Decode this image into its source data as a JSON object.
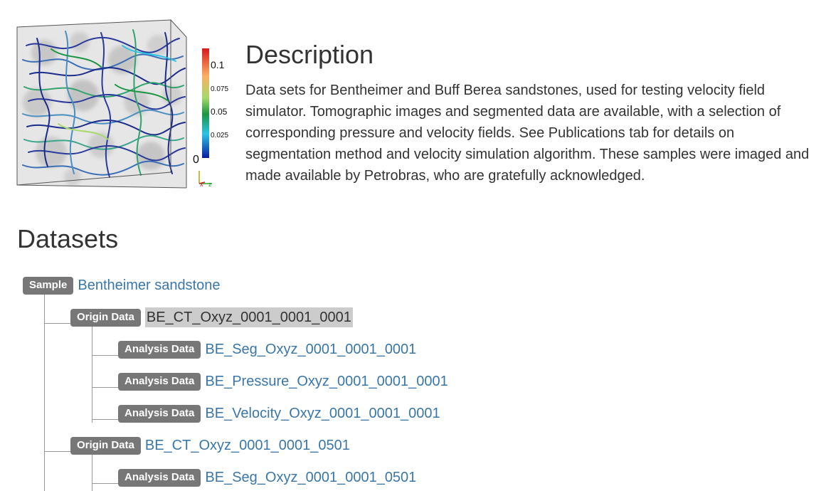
{
  "figure": {
    "colorbar_ticks": [
      "0.1",
      "0.075",
      "0.05",
      "0.025",
      "0"
    ],
    "axis_labels": [
      "x",
      "z"
    ]
  },
  "description": {
    "title": "Description",
    "text": "Data sets for Bentheimer and Buff Berea sandstones, used for testing velocity field simulator. Tomographic images and segmented data are available, with a selection of corresponding pressure and velocity fields. See Publications tab for details on segmentation method and velocity simulation algorithm. These samples were imaged and made available by Petrobras, who are gratefully acknowledged."
  },
  "datasets": {
    "title": "Datasets",
    "tree": [
      {
        "badge": "Sample",
        "label": "Bentheimer sandstone",
        "selected": false
      },
      {
        "badge": "Origin Data",
        "label": "BE_CT_Oxyz_0001_0001_0001",
        "selected": true
      },
      {
        "badge": "Analysis Data",
        "label": "BE_Seg_Oxyz_0001_0001_0001",
        "selected": false
      },
      {
        "badge": "Analysis Data",
        "label": "BE_Pressure_Oxyz_0001_0001_0001",
        "selected": false
      },
      {
        "badge": "Analysis Data",
        "label": "BE_Velocity_Oxyz_0001_0001_0001",
        "selected": false
      },
      {
        "badge": "Origin Data",
        "label": "BE_CT_Oxyz_0001_0001_0501",
        "selected": false
      },
      {
        "badge": "Analysis Data",
        "label": "BE_Seg_Oxyz_0001_0001_0501",
        "selected": false
      }
    ]
  }
}
